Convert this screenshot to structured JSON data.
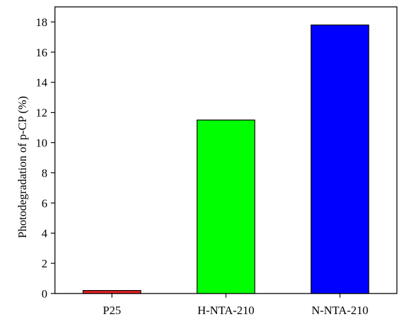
{
  "chart_data": {
    "type": "bar",
    "title": "",
    "xlabel": "",
    "ylabel": "Photodegradation of p-CP (%)",
    "categories": [
      "P25",
      "H-NTA-210",
      "N-NTA-210"
    ],
    "values": [
      0.2,
      11.5,
      17.8
    ],
    "colors": [
      "#e82020",
      "#00ff00",
      "#0000ff"
    ],
    "ylim": [
      0,
      19
    ],
    "yticks": [
      "0",
      "2",
      "4",
      "6",
      "8",
      "10",
      "12",
      "14",
      "16",
      "18"
    ],
    "grid": false,
    "legend": "none"
  }
}
